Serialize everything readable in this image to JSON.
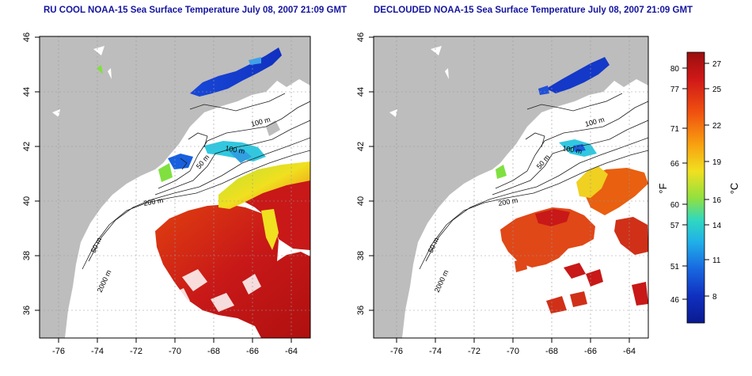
{
  "panels": [
    {
      "title": "RU COOL NOAA-15 Sea Surface Temperature July 08, 2007 21:09 GMT"
    },
    {
      "title": "DECLOUDED NOAA-15 Sea Surface Temperature July 08, 2007 21:09 GMT"
    }
  ],
  "axes": {
    "lat_ticks": [
      "46",
      "44",
      "42",
      "40",
      "38",
      "36"
    ],
    "lon_ticks": [
      "-76",
      "-74",
      "-72",
      "-70",
      "-68",
      "-66",
      "-64"
    ]
  },
  "contour_labels": {
    "m100": "100 m",
    "m100b": "100 m",
    "m50": "50 m",
    "m200": "200 m",
    "m50s": "50 m",
    "m2000": "2000 m"
  },
  "colorbar": {
    "f_label": "°F",
    "c_label": "°C",
    "f_ticks": [
      "80",
      "77",
      "71",
      "66",
      "60",
      "57",
      "51",
      "46"
    ],
    "c_ticks": [
      "27",
      "25",
      "22",
      "19",
      "16",
      "14",
      "11",
      "8"
    ]
  },
  "colors": {
    "land": "#bdbdbd",
    "title": "#1414a0",
    "warm": "#c01010",
    "cold": "#1030c8"
  }
}
